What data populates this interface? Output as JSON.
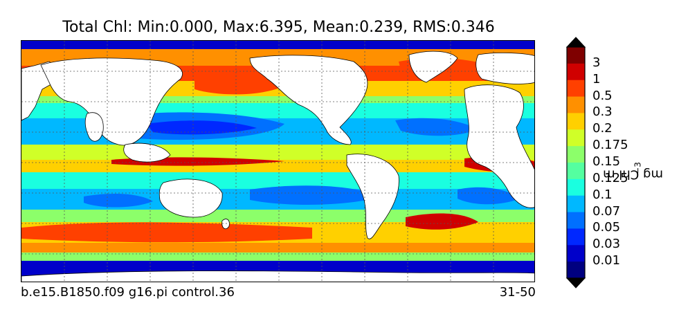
{
  "title": "Total Chl: Min:0.000, Max:6.395, Mean:0.239, RMS:0.346",
  "caption_left": "b.e15.B1850.f09 g16.pi control.36",
  "caption_right": "31-50",
  "colorbar": {
    "units_text": "mg Chl m",
    "units_exponent": "−3",
    "tick_labels": [
      "3",
      "1",
      "0.5",
      "0.3",
      "0.2",
      "0.175",
      "0.15",
      "0.125",
      "0.1",
      "0.07",
      "0.05",
      "0.03",
      "0.01"
    ],
    "colors": [
      "#7f0000",
      "#d00000",
      "#ff4000",
      "#ff9000",
      "#ffd000",
      "#d0ff28",
      "#8cff6a",
      "#54ffa0",
      "#1affe0",
      "#00b8ff",
      "#0070ff",
      "#0028ff",
      "#0000ca",
      "#000080"
    ],
    "extend": "both"
  },
  "map": {
    "projection": "cylindrical",
    "land_color": "#ffffff",
    "gridlines": "dotted",
    "colors": {
      "ocean_mid": "#00b8ff",
      "oligotrophic": "#0070ff",
      "gyre_core": "#0028ff",
      "moderate": "#1affe0",
      "band": "#8cff6a",
      "band2": "#d0ff28",
      "productive": "#ffd000",
      "high": "#ff9000",
      "very_high": "#ff4000",
      "extreme": "#d00000",
      "max": "#7f0000",
      "polar_low": "#0000ca"
    }
  }
}
